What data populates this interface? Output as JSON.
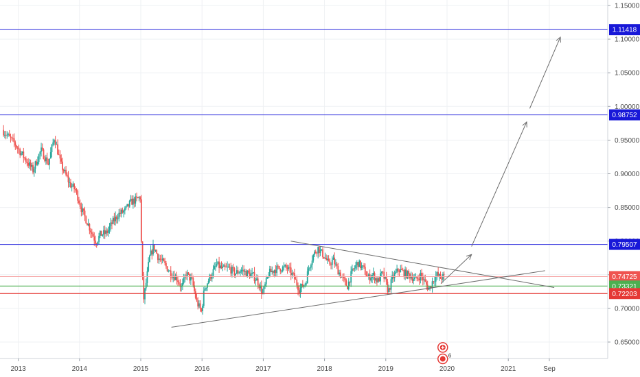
{
  "chart_data": {
    "type": "line",
    "subtype": "candlestick",
    "title": "",
    "xlabel": "",
    "ylabel": "",
    "ylim": [
      0.615,
      1.155
    ],
    "x_tick_labels": [
      {
        "label": "2013",
        "x": 2013.0
      },
      {
        "label": "2014",
        "x": 2014.0
      },
      {
        "label": "2015",
        "x": 2015.0
      },
      {
        "label": "2016",
        "x": 2016.0
      },
      {
        "label": "2017",
        "x": 2017.0
      },
      {
        "label": "2018",
        "x": 2018.0
      },
      {
        "label": "2019",
        "x": 2019.0
      },
      {
        "label": "2020",
        "x": 2020.0
      },
      {
        "label": "2021",
        "x": 2021.0
      },
      {
        "label": "Sep",
        "x": 2021.67
      }
    ],
    "y_tick_labels": [
      "0.65000",
      "0.70000",
      "0.75000",
      "0.80000",
      "0.85000",
      "0.90000",
      "0.95000",
      "1.00000",
      "1.05000",
      "1.10000",
      "1.15000"
    ],
    "y_tick_values": [
      0.65,
      0.7,
      0.75,
      0.8,
      0.85,
      0.9,
      0.95,
      1.0,
      1.05,
      1.1,
      1.15
    ],
    "colors": {
      "up": "#26a69a",
      "down": "#ef5350",
      "level": "#3f3fdf",
      "level_label_bg": "#1818d8",
      "price_label_bg": "#ef5350",
      "price_line": "#f6a6a6",
      "support_green": "#4caf50",
      "support_red": "#e53935",
      "trendline": "#6b6b6b",
      "grid": "#eef0f3"
    },
    "price_path": [
      [
        2012.75,
        0.965
      ],
      [
        2012.95,
        0.945
      ],
      [
        2013.1,
        0.925
      ],
      [
        2013.25,
        0.905
      ],
      [
        2013.38,
        0.935
      ],
      [
        2013.5,
        0.915
      ],
      [
        2013.6,
        0.955
      ],
      [
        2013.7,
        0.915
      ],
      [
        2013.85,
        0.885
      ],
      [
        2013.95,
        0.875
      ],
      [
        2014.05,
        0.845
      ],
      [
        2014.15,
        0.825
      ],
      [
        2014.22,
        0.81
      ],
      [
        2014.28,
        0.798
      ],
      [
        2014.35,
        0.81
      ],
      [
        2014.45,
        0.812
      ],
      [
        2014.55,
        0.828
      ],
      [
        2014.65,
        0.84
      ],
      [
        2014.75,
        0.845
      ],
      [
        2014.85,
        0.858
      ],
      [
        2014.95,
        0.862
      ],
      [
        2015.0,
        0.865
      ],
      [
        2015.02,
        0.795
      ],
      [
        2015.05,
        0.71
      ],
      [
        2015.1,
        0.74
      ],
      [
        2015.15,
        0.775
      ],
      [
        2015.22,
        0.792
      ],
      [
        2015.3,
        0.775
      ],
      [
        2015.4,
        0.765
      ],
      [
        2015.5,
        0.752
      ],
      [
        2015.6,
        0.745
      ],
      [
        2015.68,
        0.73
      ],
      [
        2015.75,
        0.752
      ],
      [
        2015.85,
        0.74
      ],
      [
        2015.92,
        0.71
      ],
      [
        2016.0,
        0.695
      ],
      [
        2016.05,
        0.73
      ],
      [
        2016.15,
        0.748
      ],
      [
        2016.25,
        0.765
      ],
      [
        2016.35,
        0.758
      ],
      [
        2016.45,
        0.76
      ],
      [
        2016.55,
        0.752
      ],
      [
        2016.65,
        0.757
      ],
      [
        2016.75,
        0.752
      ],
      [
        2016.85,
        0.748
      ],
      [
        2016.92,
        0.74
      ],
      [
        2017.0,
        0.722
      ],
      [
        2017.1,
        0.752
      ],
      [
        2017.2,
        0.758
      ],
      [
        2017.3,
        0.76
      ],
      [
        2017.4,
        0.76
      ],
      [
        2017.5,
        0.748
      ],
      [
        2017.6,
        0.728
      ],
      [
        2017.7,
        0.738
      ],
      [
        2017.75,
        0.76
      ],
      [
        2017.82,
        0.778
      ],
      [
        2017.9,
        0.79
      ],
      [
        2018.0,
        0.778
      ],
      [
        2018.08,
        0.765
      ],
      [
        2018.15,
        0.772
      ],
      [
        2018.22,
        0.758
      ],
      [
        2018.3,
        0.745
      ],
      [
        2018.38,
        0.732
      ],
      [
        2018.45,
        0.752
      ],
      [
        2018.55,
        0.768
      ],
      [
        2018.65,
        0.758
      ],
      [
        2018.72,
        0.745
      ],
      [
        2018.8,
        0.75
      ],
      [
        2018.88,
        0.74
      ],
      [
        2018.95,
        0.752
      ],
      [
        2019.0,
        0.742
      ],
      [
        2019.05,
        0.725
      ],
      [
        2019.12,
        0.745
      ],
      [
        2019.22,
        0.758
      ],
      [
        2019.32,
        0.752
      ],
      [
        2019.42,
        0.748
      ],
      [
        2019.5,
        0.742
      ],
      [
        2019.58,
        0.75
      ],
      [
        2019.65,
        0.738
      ],
      [
        2019.72,
        0.728
      ],
      [
        2019.78,
        0.742
      ],
      [
        2019.85,
        0.75
      ],
      [
        2019.9,
        0.745
      ],
      [
        2019.95,
        0.747
      ]
    ],
    "horizontal_levels": [
      {
        "value": 1.11418,
        "label": "1.11418",
        "kind": "level"
      },
      {
        "value": 0.98752,
        "label": "0.98752",
        "kind": "level"
      },
      {
        "value": 0.79507,
        "label": "0.79507",
        "kind": "level"
      },
      {
        "value": 0.74725,
        "label": "0.74725",
        "kind": "price"
      },
      {
        "value": 0.73321,
        "label": "0.73321",
        "kind": "green"
      },
      {
        "value": 0.72203,
        "label": "0.72203",
        "kind": "red"
      }
    ],
    "trendlines": [
      {
        "from": [
          2015.5,
          0.672
        ],
        "to": [
          2021.6,
          0.756
        ]
      },
      {
        "from": [
          2017.45,
          0.8
        ],
        "to": [
          2021.75,
          0.731
        ]
      }
    ],
    "projection_arrows": [
      {
        "from": [
          2019.9,
          0.737
        ],
        "to": [
          2020.4,
          0.78
        ]
      },
      {
        "from": [
          2020.4,
          0.792
        ],
        "to": [
          2021.3,
          0.977
        ]
      },
      {
        "from": [
          2021.35,
          0.997
        ],
        "to": [
          2021.85,
          1.103
        ]
      }
    ],
    "event_markers": [
      {
        "x": 2019.93,
        "y": 0.642,
        "icon": "flag-icon"
      },
      {
        "x": 2019.93,
        "y": 0.625,
        "icon": "event-icon",
        "count": "6"
      }
    ]
  }
}
